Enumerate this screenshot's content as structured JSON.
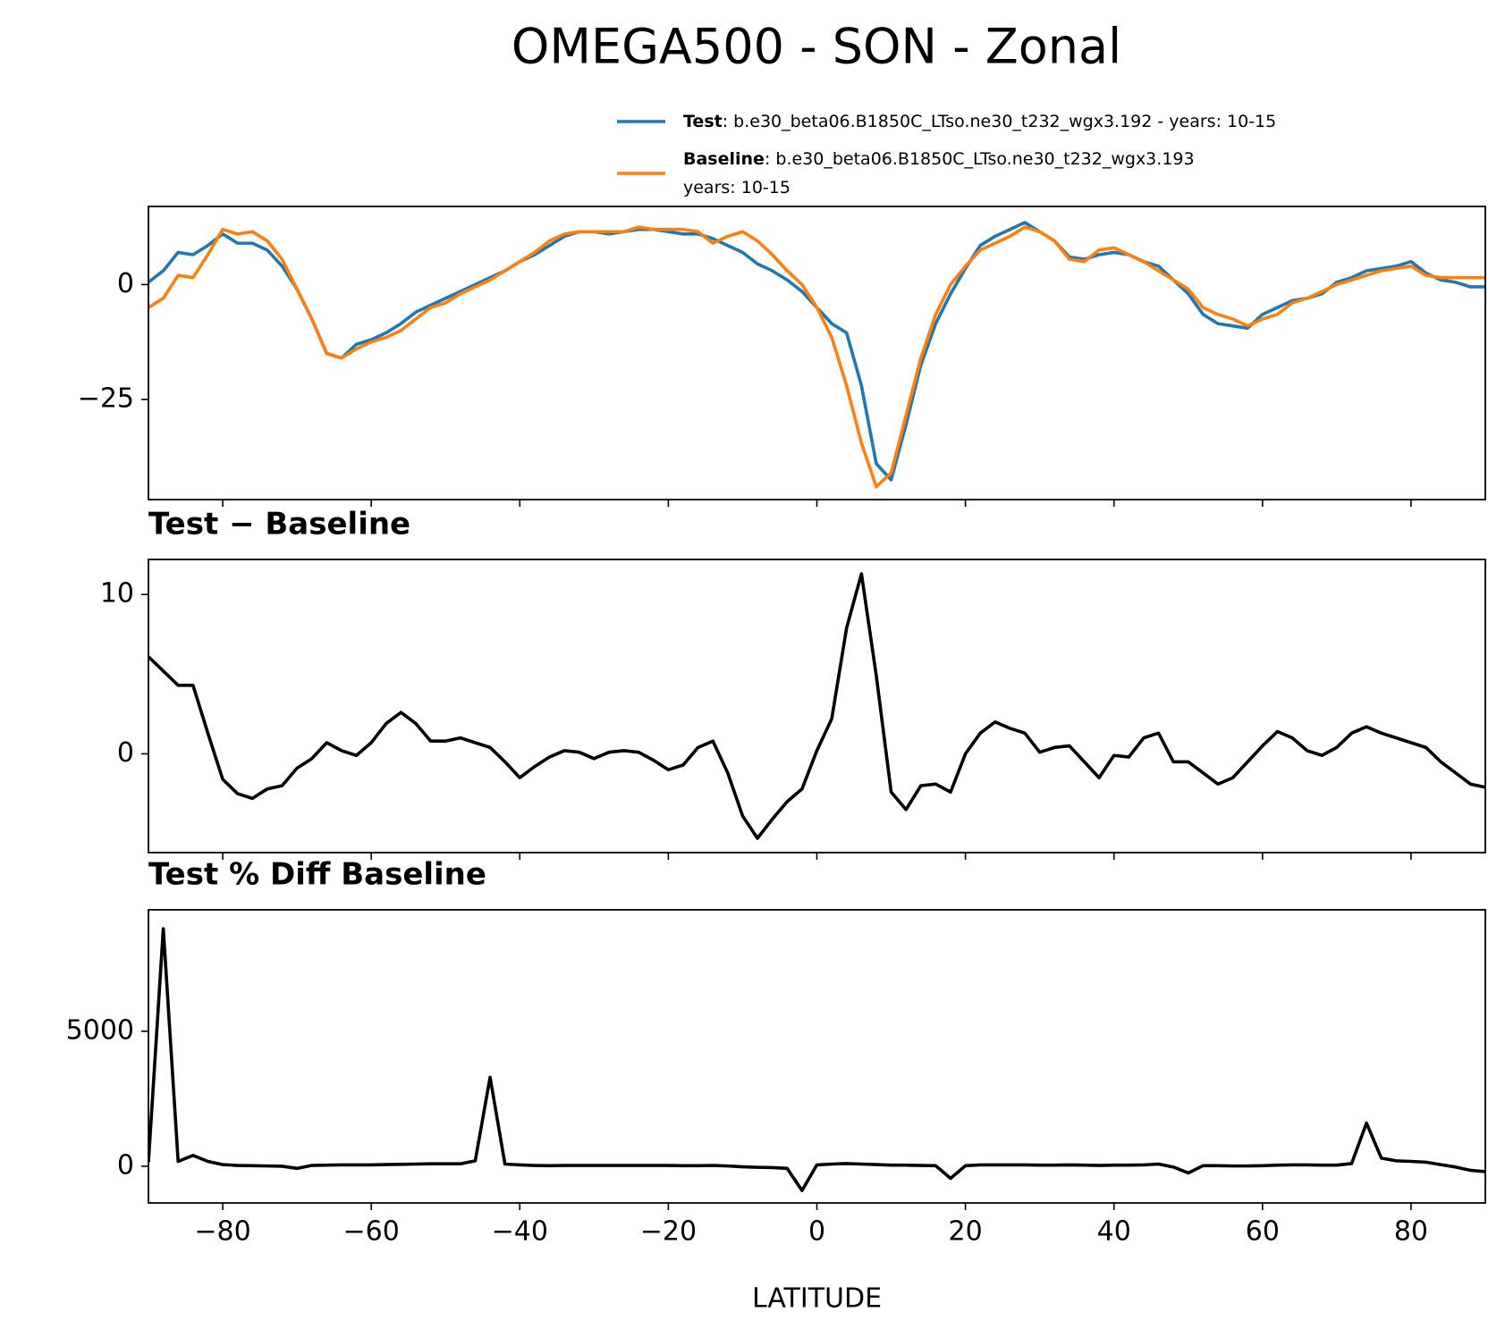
{
  "chart_data": [
    {
      "type": "line",
      "title": "OMEGA500 - SON - Zonal",
      "x": [
        -90,
        -88,
        -86,
        -84,
        -82,
        -80,
        -78,
        -76,
        -74,
        -72,
        -70,
        -68,
        -66,
        -64,
        -62,
        -60,
        -58,
        -56,
        -54,
        -52,
        -50,
        -48,
        -46,
        -44,
        -42,
        -40,
        -38,
        -36,
        -34,
        -32,
        -30,
        -28,
        -26,
        -24,
        -22,
        -20,
        -18,
        -16,
        -14,
        -12,
        -10,
        -8,
        -6,
        -4,
        -2,
        0,
        2,
        4,
        6,
        8,
        10,
        12,
        14,
        16,
        18,
        20,
        22,
        24,
        26,
        28,
        30,
        32,
        34,
        36,
        38,
        40,
        42,
        44,
        46,
        48,
        50,
        52,
        54,
        56,
        58,
        60,
        62,
        64,
        66,
        68,
        70,
        72,
        74,
        76,
        78,
        80,
        82,
        84,
        86,
        88,
        90
      ],
      "series": [
        {
          "name": "Test",
          "legend_text": [
            ": b.e30_beta06.B1850C_LTso.ne30_t232_wgx3.192 - years: 10-15"
          ],
          "color": "#1f77b4",
          "values": [
            0.5,
            3,
            7,
            6.5,
            8.5,
            11,
            9,
            9,
            7.5,
            4,
            -1,
            -7.5,
            -15,
            -16,
            -13,
            -12,
            -10.5,
            -8.5,
            -6,
            -4.5,
            -3,
            -1.5,
            0,
            1.5,
            3,
            5,
            6.5,
            8.5,
            10.5,
            11.5,
            11.5,
            11,
            11.5,
            12,
            12,
            11.5,
            11,
            11,
            10,
            8.5,
            7,
            4.5,
            3,
            1,
            -1.5,
            -5,
            -8.5,
            -10.5,
            -22,
            -39,
            -42.5,
            -30.5,
            -17.5,
            -8.5,
            -2,
            3.5,
            8.5,
            10.5,
            12,
            13.5,
            11.5,
            9.5,
            6,
            5.5,
            6.5,
            7,
            6.5,
            5,
            4,
            1,
            -2,
            -6.5,
            -8.5,
            -9,
            -9.5,
            -6.5,
            -5,
            -3.5,
            -3,
            -2,
            0.5,
            1.5,
            3,
            3.5,
            4,
            5,
            2.5,
            1,
            0.5,
            -0.5,
            -0.5
          ]
        },
        {
          "name": "Baseline",
          "legend_text": [
            ": b.e30_beta06.B1850C_LTso.ne30_t232_wgx3.193",
            "years: 10-15"
          ],
          "color": "#ff7f0e",
          "values": [
            -5,
            -3,
            2,
            1.5,
            6.5,
            12,
            11,
            11.5,
            9.5,
            5.5,
            -1,
            -7.5,
            -15,
            -16,
            -14,
            -12.5,
            -11.5,
            -10,
            -7.5,
            -5,
            -4,
            -2,
            -0.5,
            1,
            3,
            5,
            7,
            9.5,
            11,
            11.5,
            11.5,
            11.5,
            11.5,
            12.5,
            12,
            12,
            12,
            11.5,
            9,
            10.5,
            11.5,
            9.5,
            6.5,
            3,
            0,
            -5,
            -11.5,
            -22,
            -34.5,
            -44,
            -41,
            -28.5,
            -16,
            -6.5,
            0,
            4,
            7.5,
            9,
            10.5,
            12.5,
            11.5,
            9.5,
            5.5,
            5,
            7.5,
            8,
            6.5,
            5,
            3,
            1,
            -1,
            -5,
            -6.5,
            -7.5,
            -9,
            -7.5,
            -6.5,
            -4,
            -3,
            -1.5,
            0,
            1,
            2,
            3,
            3.5,
            4,
            2,
            1.5,
            1.5,
            1.5,
            1.5
          ]
        }
      ],
      "xlim": [
        -90,
        90
      ],
      "ylim": [
        -46.8,
        17
      ],
      "yticks": [
        {
          "value": -25,
          "label": "−25"
        },
        0
      ]
    },
    {
      "type": "line",
      "title": "Test − Baseline",
      "x": [
        -90,
        -88,
        -86,
        -84,
        -82,
        -80,
        -78,
        -76,
        -74,
        -72,
        -70,
        -68,
        -66,
        -64,
        -62,
        -60,
        -58,
        -56,
        -54,
        -52,
        -50,
        -48,
        -46,
        -44,
        -42,
        -40,
        -38,
        -36,
        -34,
        -32,
        -30,
        -28,
        -26,
        -24,
        -22,
        -20,
        -18,
        -16,
        -14,
        -12,
        -10,
        -8,
        -6,
        -4,
        -2,
        0,
        2,
        4,
        6,
        8,
        10,
        12,
        14,
        16,
        18,
        20,
        22,
        24,
        26,
        28,
        30,
        32,
        34,
        36,
        38,
        40,
        42,
        44,
        46,
        48,
        50,
        52,
        54,
        56,
        58,
        60,
        62,
        64,
        66,
        68,
        70,
        72,
        74,
        76,
        78,
        80,
        82,
        84,
        86,
        88,
        90
      ],
      "series": [
        {
          "color": "#000000",
          "values": [
            6.1,
            5.2,
            4.3,
            4.3,
            1.3,
            -1.6,
            -2.5,
            -2.8,
            -2.2,
            -2,
            -0.9,
            -0.3,
            0.7,
            0.2,
            -0.1,
            0.7,
            1.9,
            2.6,
            1.9,
            0.8,
            0.8,
            1,
            0.7,
            0.4,
            -0.5,
            -1.5,
            -0.8,
            -0.2,
            0.2,
            0.1,
            -0.3,
            0.1,
            0.2,
            0.1,
            -0.4,
            -1,
            -0.7,
            0.4,
            0.8,
            -1.2,
            -3.9,
            -5.3,
            -4.1,
            -3,
            -2.2,
            0.2,
            2.2,
            7.9,
            11.3,
            4.9,
            -2.4,
            -3.5,
            -2,
            -1.9,
            -2.4,
            0,
            1.3,
            2,
            1.6,
            1.3,
            0.1,
            0.4,
            0.5,
            -0.5,
            -1.5,
            -0.1,
            -0.2,
            1,
            1.3,
            -0.5,
            -0.5,
            -1.2,
            -1.9,
            -1.5,
            -0.5,
            0.5,
            1.4,
            1,
            0.2,
            -0.1,
            0.4,
            1.3,
            1.7,
            1.3,
            1,
            0.7,
            0.4,
            -0.5,
            -1.2,
            -1.9,
            -2.1
          ]
        }
      ],
      "xlim": [
        -90,
        90
      ],
      "ylim": [
        -6.2,
        12.2
      ],
      "yticks": [
        0,
        10
      ]
    },
    {
      "type": "line",
      "title": "Test % Diff Baseline",
      "xlabel": "LATITUDE",
      "x": [
        -90,
        -88,
        -86,
        -84,
        -82,
        -80,
        -78,
        -76,
        -74,
        -72,
        -70,
        -68,
        -66,
        -64,
        -62,
        -60,
        -58,
        -56,
        -54,
        -52,
        -50,
        -48,
        -46,
        -44,
        -42,
        -40,
        -38,
        -36,
        -34,
        -32,
        -30,
        -28,
        -26,
        -24,
        -22,
        -20,
        -18,
        -16,
        -14,
        -12,
        -10,
        -8,
        -6,
        -4,
        -2,
        0,
        2,
        4,
        6,
        8,
        10,
        12,
        14,
        16,
        18,
        20,
        22,
        24,
        26,
        28,
        30,
        32,
        34,
        36,
        38,
        40,
        42,
        44,
        46,
        48,
        50,
        52,
        54,
        56,
        58,
        60,
        62,
        64,
        66,
        68,
        70,
        72,
        74,
        76,
        78,
        80,
        82,
        84,
        86,
        88,
        90
      ],
      "series": [
        {
          "color": "#000000",
          "values": [
            150,
            8800,
            180,
            400,
            180,
            60,
            30,
            20,
            10,
            0,
            -80,
            30,
            40,
            50,
            50,
            50,
            60,
            70,
            80,
            90,
            90,
            90,
            200,
            3300,
            80,
            50,
            30,
            20,
            30,
            30,
            30,
            30,
            30,
            30,
            30,
            30,
            20,
            20,
            30,
            10,
            -20,
            -40,
            -50,
            -80,
            -900,
            50,
            80,
            100,
            80,
            60,
            40,
            40,
            30,
            20,
            -450,
            20,
            50,
            50,
            50,
            50,
            40,
            40,
            50,
            40,
            30,
            40,
            40,
            50,
            80,
            -30,
            -250,
            20,
            20,
            10,
            10,
            20,
            40,
            50,
            50,
            40,
            40,
            100,
            1600,
            300,
            200,
            180,
            150,
            60,
            -30,
            -150,
            -200
          ]
        }
      ],
      "xlim": [
        -90,
        90
      ],
      "ylim": [
        -1360,
        9500
      ],
      "xticks": [
        {
          "value": -80,
          "label": "−80"
        },
        {
          "value": -60,
          "label": "−60"
        },
        {
          "value": -40,
          "label": "−40"
        },
        {
          "value": -20,
          "label": "−20"
        },
        0,
        20,
        40,
        60,
        80
      ],
      "yticks": [
        0,
        5000
      ]
    }
  ]
}
